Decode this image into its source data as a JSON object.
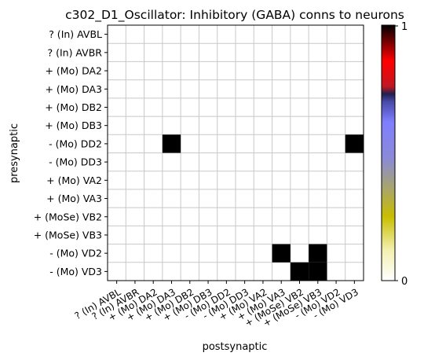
{
  "chart_data": {
    "type": "heatmap",
    "title": "c302_D1_Oscillator: Inhibitory (GABA) conns to neurons",
    "xlabel": "postsynaptic",
    "ylabel": "presynaptic",
    "rows": [
      "? (In) AVBL",
      "? (In) AVBR",
      "+ (Mo) DA2",
      "+ (Mo) DA3",
      "+ (Mo) DB2",
      "+ (Mo) DB3",
      "- (Mo) DD2",
      "- (Mo) DD3",
      "+ (Mo) VA2",
      "+ (Mo) VA3",
      "+ (MoSe) VB2",
      "+ (MoSe) VB3",
      "- (Mo) VD2",
      "- (Mo) VD3"
    ],
    "columns": [
      "? (In) AVBL",
      "? (In) AVBR",
      "+ (Mo) DA2",
      "+ (Mo) DA3",
      "+ (Mo) DB2",
      "+ (Mo) DB3",
      "- (Mo) DD2",
      "- (Mo) DD3",
      "+ (Mo) VA2",
      "+ (Mo) VA3",
      "+ (MoSe) VB2",
      "+ (MoSe) VB3",
      "- (Mo) VD2",
      "- (Mo) VD3"
    ],
    "cells": [
      {
        "row": "- (Mo) DD2",
        "col": "+ (Mo) DA3",
        "value": 1
      },
      {
        "row": "- (Mo) DD2",
        "col": "- (Mo) VD3",
        "value": 1
      },
      {
        "row": "- (Mo) VD2",
        "col": "+ (Mo) VA3",
        "value": 1
      },
      {
        "row": "- (Mo) VD2",
        "col": "+ (MoSe) VB3",
        "value": 1
      },
      {
        "row": "- (Mo) VD3",
        "col": "+ (MoSe) VB2",
        "value": 1
      },
      {
        "row": "- (Mo) VD3",
        "col": "+ (MoSe) VB3",
        "value": 1
      }
    ],
    "colorbar": {
      "range": [
        0,
        1
      ],
      "tick_labels": [
        "0",
        "1"
      ],
      "colormap": "gist_stern_r",
      "stops": [
        "#ffffff",
        "#c8be00",
        "#7f7fff",
        "#3a3aa0",
        "#101a60",
        "#d0101a",
        "#000000"
      ]
    },
    "grid": true
  }
}
